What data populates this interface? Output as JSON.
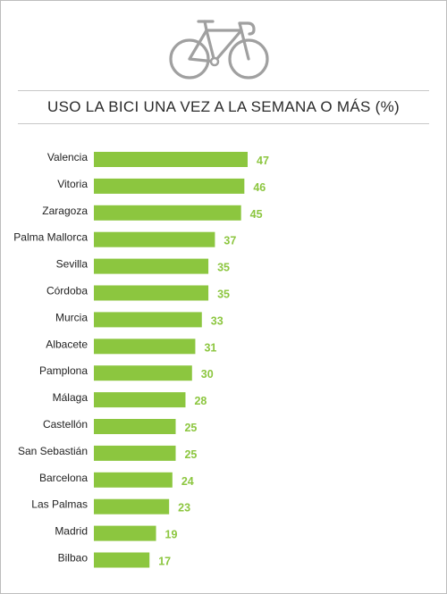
{
  "title": "USO LA BICI UNA VEZ A LA SEMANA O MÁS (%)",
  "icon": "bicycle-icon",
  "colors": {
    "bar": "#8cc63f",
    "value_label": "#8cc63f",
    "bike_stroke": "#a0a0a0"
  },
  "chart_data": {
    "type": "bar",
    "orientation": "horizontal",
    "title": "USO LA BICI UNA VEZ A LA SEMANA O MÁS (%)",
    "categories": [
      "Valencia",
      "Vitoria",
      "Zaragoza",
      "Palma Mallorca",
      "Sevilla",
      "Córdoba",
      "Murcia",
      "Albacete",
      "Pamplona",
      "Málaga",
      "Castellón",
      "San Sebastián",
      "Barcelona",
      "Las Palmas",
      "Madrid",
      "Bilbao"
    ],
    "values": [
      47,
      46,
      45,
      37,
      35,
      35,
      33,
      31,
      30,
      28,
      25,
      25,
      24,
      23,
      19,
      17
    ],
    "xlabel": "",
    "ylabel": "",
    "xlim": [
      0,
      47
    ],
    "grid": false,
    "legend": "none"
  }
}
